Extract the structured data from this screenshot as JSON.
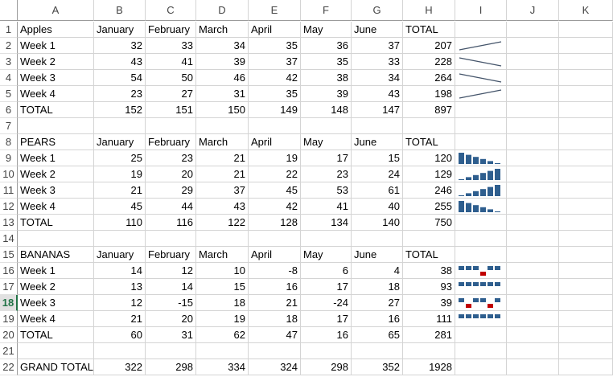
{
  "column_headers": [
    "A",
    "B",
    "C",
    "D",
    "E",
    "F",
    "G",
    "H",
    "I",
    "J",
    "K"
  ],
  "active_row": "18",
  "rows": [
    {
      "num": "1",
      "cells": [
        "Apples",
        "January",
        "February",
        "March",
        "April",
        "May",
        "June",
        "TOTAL"
      ],
      "spark": null
    },
    {
      "num": "2",
      "cells": [
        "Week 1",
        "32",
        "33",
        "34",
        "35",
        "36",
        "37",
        "207"
      ],
      "spark": {
        "type": "line",
        "values": [
          32,
          33,
          34,
          35,
          36,
          37
        ]
      }
    },
    {
      "num": "3",
      "cells": [
        "Week 2",
        "43",
        "41",
        "39",
        "37",
        "35",
        "33",
        "228"
      ],
      "spark": {
        "type": "line",
        "values": [
          43,
          41,
          39,
          37,
          35,
          33
        ]
      }
    },
    {
      "num": "4",
      "cells": [
        "Week 3",
        "54",
        "50",
        "46",
        "42",
        "38",
        "34",
        "264"
      ],
      "spark": {
        "type": "line",
        "values": [
          54,
          50,
          46,
          42,
          38,
          34
        ]
      }
    },
    {
      "num": "5",
      "cells": [
        "Week 4",
        "23",
        "27",
        "31",
        "35",
        "39",
        "43",
        "198"
      ],
      "spark": {
        "type": "line",
        "values": [
          23,
          27,
          31,
          35,
          39,
          43
        ]
      }
    },
    {
      "num": "6",
      "cells": [
        "TOTAL",
        "152",
        "151",
        "150",
        "149",
        "148",
        "147",
        "897"
      ],
      "spark": null
    },
    {
      "num": "7",
      "cells": [
        "",
        "",
        "",
        "",
        "",
        "",
        "",
        ""
      ],
      "spark": null
    },
    {
      "num": "8",
      "cells": [
        "PEARS",
        "January",
        "February",
        "March",
        "April",
        "May",
        "June",
        "TOTAL"
      ],
      "spark": null
    },
    {
      "num": "9",
      "cells": [
        "Week 1",
        "25",
        "23",
        "21",
        "19",
        "17",
        "15",
        "120"
      ],
      "spark": {
        "type": "column",
        "values": [
          25,
          23,
          21,
          19,
          17,
          15
        ]
      }
    },
    {
      "num": "10",
      "cells": [
        "Week 2",
        "19",
        "20",
        "21",
        "22",
        "23",
        "24",
        "129"
      ],
      "spark": {
        "type": "column",
        "values": [
          19,
          20,
          21,
          22,
          23,
          24
        ]
      }
    },
    {
      "num": "11",
      "cells": [
        "Week 3",
        "21",
        "29",
        "37",
        "45",
        "53",
        "61",
        "246"
      ],
      "spark": {
        "type": "column",
        "values": [
          21,
          29,
          37,
          45,
          53,
          61
        ]
      }
    },
    {
      "num": "12",
      "cells": [
        "Week 4",
        "45",
        "44",
        "43",
        "42",
        "41",
        "40",
        "255"
      ],
      "spark": {
        "type": "column",
        "values": [
          45,
          44,
          43,
          42,
          41,
          40
        ]
      }
    },
    {
      "num": "13",
      "cells": [
        "TOTAL",
        "110",
        "116",
        "122",
        "128",
        "134",
        "140",
        "750"
      ],
      "spark": null
    },
    {
      "num": "14",
      "cells": [
        "",
        "",
        "",
        "",
        "",
        "",
        "",
        ""
      ],
      "spark": null
    },
    {
      "num": "15",
      "cells": [
        "BANANAS",
        "January",
        "February",
        "March",
        "April",
        "May",
        "June",
        "TOTAL"
      ],
      "spark": null
    },
    {
      "num": "16",
      "cells": [
        "Week 1",
        "14",
        "12",
        "10",
        "-8",
        "6",
        "4",
        "38"
      ],
      "spark": {
        "type": "winloss",
        "values": [
          14,
          12,
          10,
          -8,
          6,
          4
        ]
      }
    },
    {
      "num": "17",
      "cells": [
        "Week 2",
        "13",
        "14",
        "15",
        "16",
        "17",
        "18",
        "93"
      ],
      "spark": {
        "type": "winloss",
        "values": [
          13,
          14,
          15,
          16,
          17,
          18
        ]
      }
    },
    {
      "num": "18",
      "cells": [
        "Week 3",
        "12",
        "-15",
        "18",
        "21",
        "-24",
        "27",
        "39"
      ],
      "spark": {
        "type": "winloss",
        "values": [
          12,
          -15,
          18,
          21,
          -24,
          27
        ]
      }
    },
    {
      "num": "19",
      "cells": [
        "Week 4",
        "21",
        "20",
        "19",
        "18",
        "17",
        "16",
        "111"
      ],
      "spark": {
        "type": "winloss",
        "values": [
          21,
          20,
          19,
          18,
          17,
          16
        ]
      }
    },
    {
      "num": "20",
      "cells": [
        "TOTAL",
        "60",
        "31",
        "62",
        "47",
        "16",
        "65",
        "281"
      ],
      "spark": null
    },
    {
      "num": "21",
      "cells": [
        "",
        "",
        "",
        "",
        "",
        "",
        "",
        ""
      ],
      "spark": null
    },
    {
      "num": "22",
      "cells": [
        "GRAND TOTAL",
        "322",
        "298",
        "334",
        "324",
        "298",
        "352",
        "1928"
      ],
      "spark": null
    }
  ],
  "colors": {
    "sparkline": "#44546a",
    "column_bar": "#2e5e8e",
    "winloss_positive": "#2e5e8e",
    "winloss_negative": "#c00000",
    "grid": "#d4d4d4"
  }
}
